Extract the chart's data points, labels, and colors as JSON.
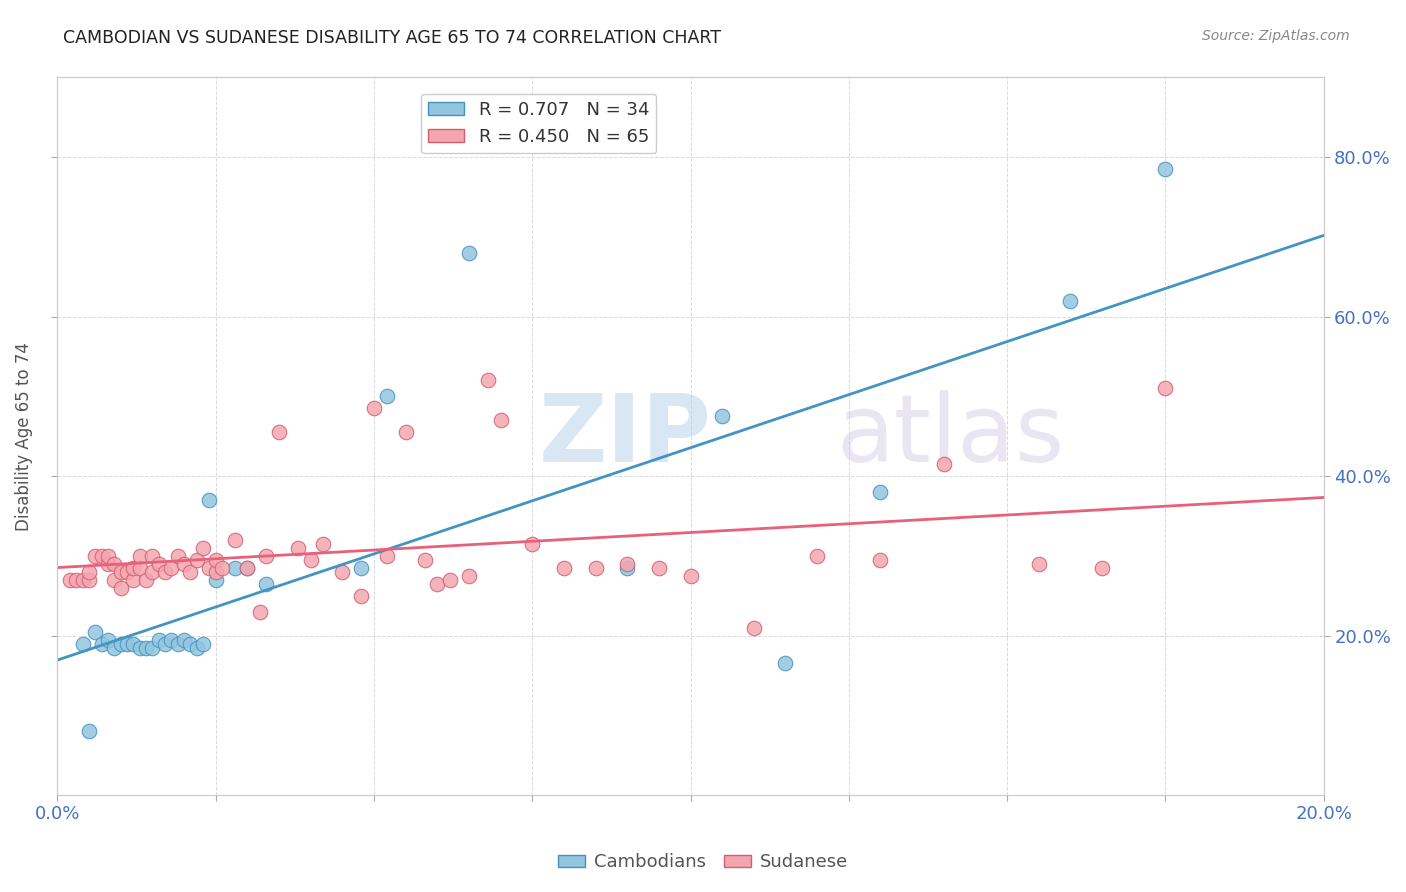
{
  "title": "CAMBODIAN VS SUDANESE DISABILITY AGE 65 TO 74 CORRELATION CHART",
  "source": "Source: ZipAtlas.com",
  "ylabel": "Disability Age 65 to 74",
  "watermark": "ZIPatlas",
  "r_cambodian": 0.707,
  "n_cambodian": 34,
  "r_sudanese": 0.45,
  "n_sudanese": 65,
  "xlim": [
    0.0,
    0.2
  ],
  "ylim": [
    0.0,
    0.9
  ],
  "xticks": [
    0.0,
    0.025,
    0.05,
    0.075,
    0.1,
    0.125,
    0.15,
    0.175,
    0.2
  ],
  "yticks": [
    0.2,
    0.4,
    0.6,
    0.8
  ],
  "color_cambodian": "#92c5de",
  "color_sudanese": "#f4a6b0",
  "line_color_cambodian": "#4393c3",
  "line_color_sudanese": "#e8607a",
  "background_color": "#ffffff",
  "grid_color": "#d0d0d0",
  "title_color": "#222222",
  "axis_label_color": "#4472c4",
  "cambodian_x": [
    0.004,
    0.005,
    0.006,
    0.007,
    0.008,
    0.009,
    0.01,
    0.011,
    0.012,
    0.013,
    0.014,
    0.015,
    0.016,
    0.017,
    0.018,
    0.019,
    0.02,
    0.021,
    0.022,
    0.023,
    0.024,
    0.025,
    0.028,
    0.03,
    0.033,
    0.048,
    0.052,
    0.065,
    0.09,
    0.105,
    0.115,
    0.13,
    0.16,
    0.175
  ],
  "cambodian_y": [
    0.19,
    0.08,
    0.205,
    0.19,
    0.195,
    0.185,
    0.19,
    0.19,
    0.19,
    0.185,
    0.185,
    0.185,
    0.195,
    0.19,
    0.195,
    0.19,
    0.195,
    0.19,
    0.185,
    0.19,
    0.37,
    0.27,
    0.285,
    0.285,
    0.265,
    0.285,
    0.5,
    0.68,
    0.285,
    0.475,
    0.165,
    0.38,
    0.62,
    0.785
  ],
  "sudanese_x": [
    0.002,
    0.003,
    0.004,
    0.005,
    0.005,
    0.006,
    0.007,
    0.008,
    0.008,
    0.009,
    0.009,
    0.01,
    0.01,
    0.011,
    0.012,
    0.012,
    0.013,
    0.013,
    0.014,
    0.015,
    0.015,
    0.016,
    0.017,
    0.018,
    0.019,
    0.02,
    0.021,
    0.022,
    0.023,
    0.024,
    0.025,
    0.025,
    0.026,
    0.028,
    0.03,
    0.032,
    0.033,
    0.035,
    0.038,
    0.04,
    0.042,
    0.045,
    0.048,
    0.05,
    0.052,
    0.055,
    0.058,
    0.06,
    0.062,
    0.065,
    0.068,
    0.07,
    0.075,
    0.08,
    0.085,
    0.09,
    0.095,
    0.1,
    0.11,
    0.12,
    0.13,
    0.14,
    0.155,
    0.165,
    0.175
  ],
  "sudanese_y": [
    0.27,
    0.27,
    0.27,
    0.27,
    0.28,
    0.3,
    0.3,
    0.29,
    0.3,
    0.27,
    0.29,
    0.26,
    0.28,
    0.28,
    0.27,
    0.285,
    0.285,
    0.3,
    0.27,
    0.28,
    0.3,
    0.29,
    0.28,
    0.285,
    0.3,
    0.29,
    0.28,
    0.295,
    0.31,
    0.285,
    0.28,
    0.295,
    0.285,
    0.32,
    0.285,
    0.23,
    0.3,
    0.455,
    0.31,
    0.295,
    0.315,
    0.28,
    0.25,
    0.485,
    0.3,
    0.455,
    0.295,
    0.265,
    0.27,
    0.275,
    0.52,
    0.47,
    0.315,
    0.285,
    0.285,
    0.29,
    0.285,
    0.275,
    0.21,
    0.3,
    0.295,
    0.415,
    0.29,
    0.285,
    0.51
  ]
}
